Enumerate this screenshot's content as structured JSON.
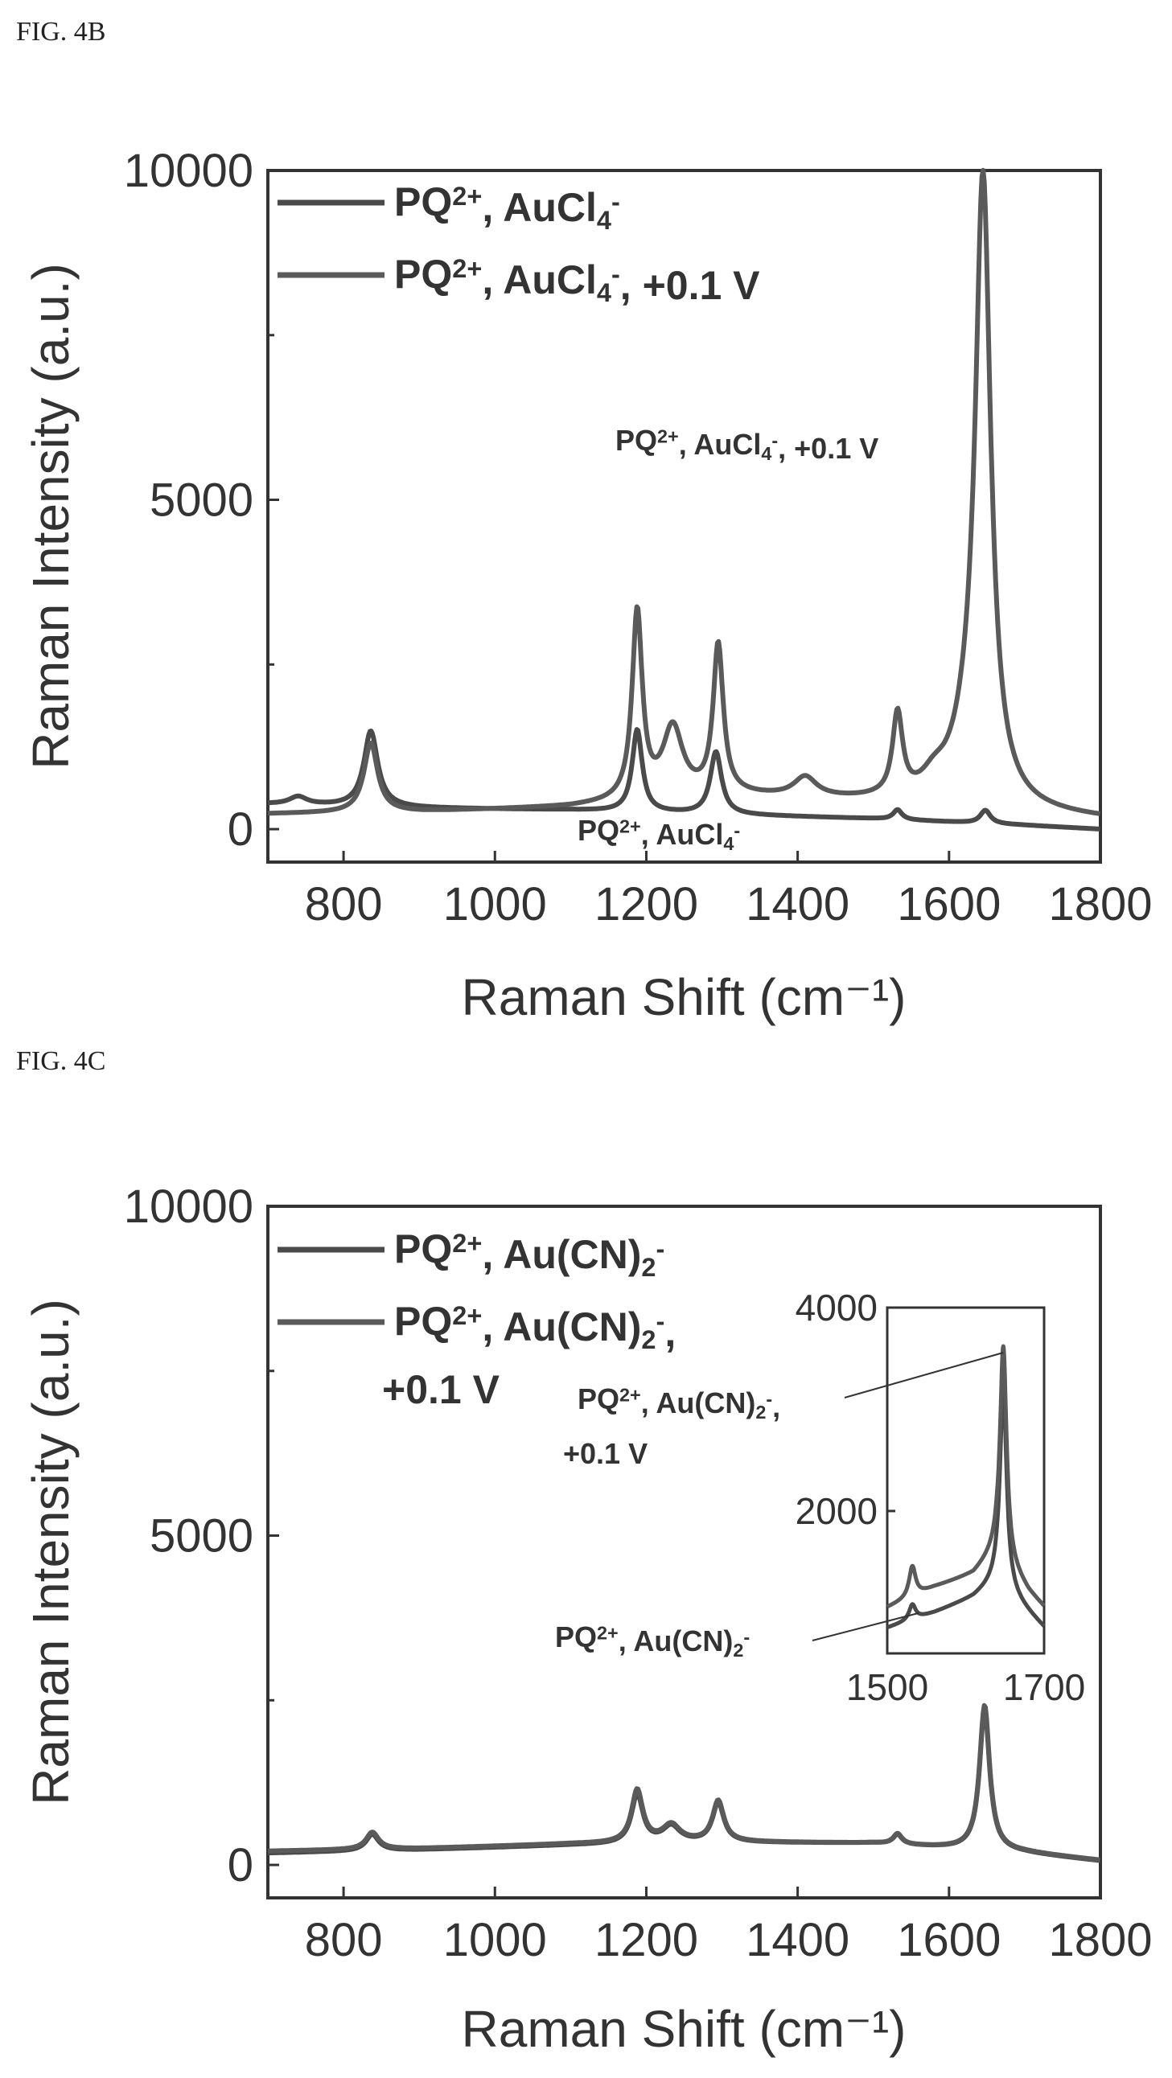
{
  "figure_labels": {
    "b": "FIG. 4B",
    "c": "FIG. 4C"
  },
  "chart_data": [
    {
      "id": "b",
      "type": "line",
      "xlabel": "Raman Shift (cm⁻¹)",
      "ylabel": "Raman Intensity (a.u.)",
      "xlim": [
        700,
        1800
      ],
      "ylim": [
        -500,
        10000
      ],
      "xticks": [
        800,
        1000,
        1200,
        1400,
        1600,
        1800
      ],
      "yticks": [
        0,
        5000,
        10000
      ],
      "grid": false,
      "legend_position": "top-left",
      "legend": [
        {
          "base": "PQ",
          "sup": "2+",
          "mid": ", AuCl",
          "sub": "4",
          "sup2": "-",
          "tail": ""
        },
        {
          "base": "PQ",
          "sup": "2+",
          "mid": ", AuCl",
          "sub": "4",
          "sup2": "-",
          "tail": ", +0.1 V"
        }
      ],
      "annotations": [
        {
          "base": "PQ",
          "sup": "2+",
          "mid": ", AuCl",
          "sub": "4",
          "sup2": "-",
          "tail": ", +0.1 V",
          "x": 1550,
          "y": 5700
        },
        {
          "base": "PQ",
          "sup": "2+",
          "mid": ", AuCl",
          "sub": "4",
          "sup2": "-",
          "tail": "",
          "x": 1345,
          "y": -400
        }
      ],
      "series": [
        {
          "color": "#4a4a4a",
          "baseline": [
            [
              700,
              380
            ],
            [
              900,
              320
            ],
            [
              1100,
              290
            ],
            [
              1300,
              220
            ],
            [
              1500,
              160
            ],
            [
              1700,
              60
            ],
            [
              1800,
              0
            ]
          ],
          "peaks": [
            [
              740,
              120,
              14
            ],
            [
              836,
              1150,
              11
            ],
            [
              1188,
              1250,
              8
            ],
            [
              1292,
              950,
              9
            ],
            [
              1532,
              150,
              7
            ],
            [
              1648,
              200,
              8
            ]
          ]
        },
        {
          "color": "#5a5a5a",
          "baseline": [
            [
              700,
              230
            ],
            [
              900,
              260
            ],
            [
              1100,
              330
            ],
            [
              1300,
              500
            ],
            [
              1500,
              400
            ],
            [
              1700,
              220
            ],
            [
              1800,
              150
            ]
          ],
          "peaks": [
            [
              836,
              1050,
              11
            ],
            [
              1188,
              2850,
              8
            ],
            [
              1235,
              1050,
              16
            ],
            [
              1295,
              2250,
              8
            ],
            [
              1410,
              300,
              18
            ],
            [
              1532,
              1250,
              8
            ],
            [
              1580,
              250,
              20
            ],
            [
              1645,
              9000,
              12
            ],
            [
              1630,
              900,
              28
            ]
          ]
        }
      ]
    },
    {
      "id": "c",
      "type": "line",
      "xlabel": "Raman Shift (cm⁻¹)",
      "ylabel": "Raman Intensity (a.u.)",
      "xlim": [
        700,
        1800
      ],
      "ylim": [
        -500,
        10000
      ],
      "xticks": [
        800,
        1000,
        1200,
        1400,
        1600,
        1800
      ],
      "yticks": [
        0,
        5000,
        10000
      ],
      "grid": false,
      "legend_position": "top-left",
      "legend": [
        {
          "base": "PQ",
          "sup": "2+",
          "mid": ", Au(CN)",
          "sub": "2",
          "sup2": "-",
          "tail": ""
        },
        {
          "base": "PQ",
          "sup": "2+",
          "mid": ", Au(CN)",
          "sub": "2",
          "sup2": "-",
          "tail": ","
        },
        {
          "base": "",
          "sup": "",
          "mid": "+0.1 V",
          "sub": "",
          "sup2": "",
          "tail": ""
        }
      ],
      "series": [
        {
          "color": "#4a4a4a",
          "baseline": [
            [
              700,
              180
            ],
            [
              900,
              230
            ],
            [
              1100,
              300
            ],
            [
              1300,
              340
            ],
            [
              1500,
              330
            ],
            [
              1700,
              180
            ],
            [
              1800,
              60
            ]
          ],
          "peaks": [
            [
              838,
              250,
              10
            ],
            [
              1188,
              750,
              9
            ],
            [
              1233,
              250,
              14
            ],
            [
              1295,
              600,
              9
            ],
            [
              1532,
              150,
              7
            ],
            [
              1647,
              2150,
              8
            ]
          ]
        },
        {
          "color": "#5a5a5a",
          "baseline": [
            [
              700,
              210
            ],
            [
              900,
              250
            ],
            [
              1100,
              320
            ],
            [
              1300,
              350
            ],
            [
              1500,
              330
            ],
            [
              1700,
              190
            ],
            [
              1800,
              70
            ]
          ],
          "peaks": [
            [
              838,
              260,
              10
            ],
            [
              1188,
              800,
              9
            ],
            [
              1233,
              260,
              14
            ],
            [
              1295,
              620,
              9
            ],
            [
              1532,
              160,
              7
            ],
            [
              1647,
              2200,
              8
            ]
          ]
        }
      ],
      "inset": {
        "xlim": [
          1500,
          1700
        ],
        "ylim": [
          600,
          4000
        ],
        "xticks": [
          1500,
          1700
        ],
        "yticks": [
          2000,
          4000
        ],
        "annotations": [
          {
            "base": "PQ",
            "sup": "2+",
            "mid": ", Au(CN)",
            "sub": "2",
            "sup2": "-",
            "tail": ",",
            "line2": "+0.1 V"
          },
          {
            "base": "PQ",
            "sup": "2+",
            "mid": ", Au(CN)",
            "sub": "2",
            "sup2": "-",
            "tail": "",
            "line2": ""
          }
        ],
        "series": [
          {
            "color": "#4a4a4a",
            "baseline": [
              [
                1500,
                850
              ],
              [
                1560,
                1000
              ],
              [
                1610,
                1150
              ],
              [
                1640,
                1300
              ],
              [
                1680,
                1000
              ],
              [
                1700,
                850
              ]
            ],
            "peaks": [
              [
                1532,
                150,
                5
              ],
              [
                1648,
                2000,
                5
              ]
            ]
          },
          {
            "color": "#5a5a5a",
            "baseline": [
              [
                1500,
                1050
              ],
              [
                1560,
                1250
              ],
              [
                1610,
                1380
              ],
              [
                1640,
                1600
              ],
              [
                1680,
                1200
              ],
              [
                1700,
                1050
              ]
            ],
            "peaks": [
              [
                1532,
                300,
                5
              ],
              [
                1648,
                2100,
                5
              ]
            ]
          }
        ]
      }
    }
  ]
}
